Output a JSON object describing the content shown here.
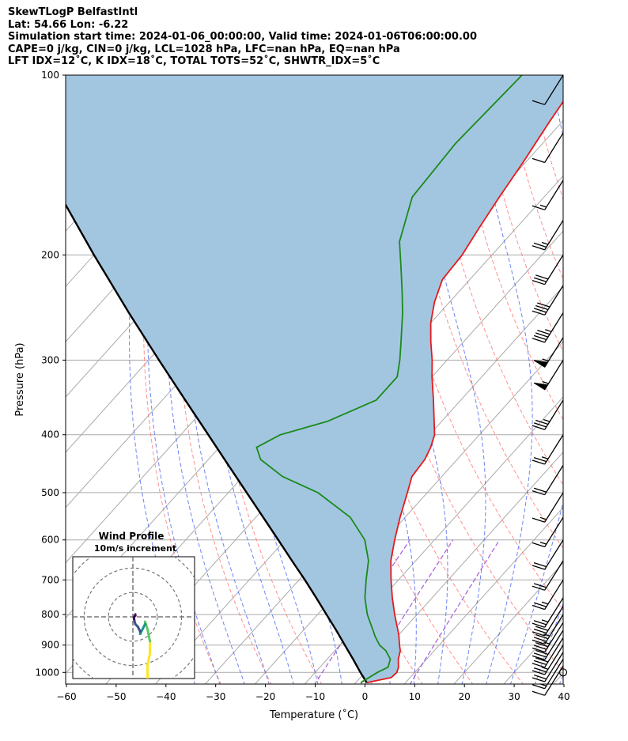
{
  "header": {
    "line1": "SkewTLogP BelfastIntl",
    "line2": "Lat: 54.66   Lon: -6.22",
    "line3": "Simulation start time: 2024-01-06_00:00:00, Valid time: 2024-01-06T06:00:00.00",
    "line4": "CAPE=0 j/kg, CIN=0 j/kg, LCL=1028 hPa, LFC=nan hPa, EQ=nan hPa",
    "line5": "LFT IDX=12˚C, K IDX=18˚C, TOTAL TOTS=52˚C, SHWTR_IDX=5˚C"
  },
  "chart_data": [
    {
      "type": "line",
      "subtype": "skew-t log-p",
      "xlabel": "Temperature (˚C)",
      "ylabel": "Pressure (hPa)",
      "xlim": [
        -60,
        40
      ],
      "ylim": [
        1050,
        100
      ],
      "yscale": "log",
      "grid": true,
      "xticks": [
        "−60",
        "−50",
        "−40",
        "−30",
        "−20",
        "−10",
        "0",
        "10",
        "20",
        "30",
        "40"
      ],
      "yticks": [
        "100",
        "200",
        "300",
        "400",
        "500",
        "600",
        "700",
        "800",
        "900",
        "1000"
      ],
      "colors": {
        "temperature": "#e41a1c",
        "dewpoint": "#1a8a1a",
        "parcel": "#000000",
        "shading": "#a3c6e0",
        "dry_adiabat": "#ff6b6b",
        "moist_adiabat": "#4a64f0",
        "mixing_ratio": "#9b4bd6",
        "isotherm": "#aaaaaa"
      },
      "series": [
        {
          "name": "temperature",
          "p": [
            1040,
            1020,
            1000,
            980,
            950,
            920,
            900,
            870,
            850,
            800,
            750,
            700,
            650,
            600,
            550,
            500,
            470,
            440,
            420,
            400,
            380,
            350,
            320,
            300,
            280,
            260,
            240,
            220,
            200,
            180,
            160,
            140,
            120,
            110,
            100
          ],
          "t": [
            2.2,
            6.2,
            6.4,
            5.8,
            4.3,
            3.2,
            2.0,
            0.3,
            -1.0,
            -4.5,
            -8.0,
            -11.5,
            -15.0,
            -18.0,
            -21.0,
            -24.0,
            -26.0,
            -26.5,
            -27.5,
            -29.0,
            -31.5,
            -35.5,
            -40.0,
            -43.0,
            -46.5,
            -50.0,
            -53.0,
            -55.5,
            -56.0,
            -57.5,
            -59.0,
            -60.5,
            -62.5,
            -63.5,
            -64.5
          ]
        },
        {
          "name": "dewpoint",
          "p": [
            1040,
            1000,
            980,
            950,
            920,
            900,
            870,
            850,
            800,
            750,
            700,
            650,
            600,
            550,
            500,
            470,
            440,
            420,
            400,
            380,
            350,
            320,
            300,
            280,
            250,
            230,
            210,
            190,
            160,
            130,
            100
          ],
          "t": [
            1.0,
            2.5,
            3.7,
            2.7,
            0.3,
            -2.0,
            -4.5,
            -6.0,
            -10.0,
            -13.5,
            -16.5,
            -19.5,
            -24.0,
            -31.0,
            -42.0,
            -52.0,
            -59.5,
            -62.5,
            -60.0,
            -53.0,
            -47.0,
            -47.0,
            -49.5,
            -52.5,
            -57.5,
            -61.5,
            -66.0,
            -71.0,
            -76.5,
            -77.5,
            -76.5
          ]
        },
        {
          "name": "parcel",
          "p": [
            1040,
            1000,
            950,
            900,
            850,
            800,
            750,
            700,
            650,
            600,
            550,
            500,
            450,
            400,
            350,
            300,
            250,
            200,
            150,
            120,
            100
          ],
          "t": [
            2.2,
            -0.9,
            -4.8,
            -9.0,
            -13.4,
            -18.2,
            -23.3,
            -28.8,
            -34.9,
            -41.4,
            -48.5,
            -56.3,
            -64.9,
            -74.5,
            -85.4,
            -97.9,
            -112.5,
            -130.0,
            -152.0,
            -168.6,
            -181.6
          ]
        }
      ],
      "wind_barbs": {
        "p": [
          1000,
          975,
          950,
          925,
          900,
          875,
          850,
          825,
          800,
          775,
          750,
          700,
          650,
          600,
          550,
          500,
          450,
          400,
          350,
          300,
          275,
          250,
          225,
          200,
          175,
          150,
          125,
          100
        ],
        "speed_kt": [
          5,
          10,
          15,
          20,
          25,
          30,
          30,
          35,
          35,
          30,
          25,
          25,
          20,
          20,
          15,
          15,
          20,
          25,
          35,
          55,
          55,
          45,
          40,
          30,
          25,
          15,
          10,
          10
        ],
        "calm_at_p": 1000
      },
      "inset": {
        "title": "Wind Profile",
        "subtitle": "10m/s increment",
        "type": "hodograph",
        "rings_ms": [
          10,
          20,
          30
        ],
        "range_ms": [
          -25,
          25
        ],
        "hodograph_u": [
          6,
          6,
          7,
          7,
          6,
          5,
          5,
          4,
          3,
          3,
          2,
          1,
          0.5,
          0.5,
          1,
          1
        ],
        "hodograph_v": [
          -25,
          -20,
          -15,
          -10,
          -5,
          -2,
          -3,
          -5,
          -7,
          -6,
          -4,
          -3,
          -1,
          0,
          0.5,
          1
        ],
        "colormap": [
          "#440154",
          "#3b528b",
          "#21918c",
          "#5ec962",
          "#fde725"
        ]
      }
    }
  ]
}
